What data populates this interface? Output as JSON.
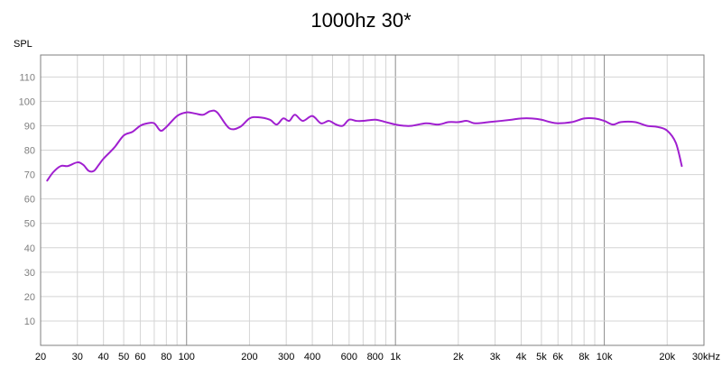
{
  "chart_data": {
    "type": "line",
    "title": "1000hz 30*",
    "ylabel": "SPL",
    "xlabel": "",
    "xscale": "log",
    "xlim": [
      20,
      30000
    ],
    "ylim": [
      0,
      119
    ],
    "yticks": [
      10,
      20,
      30,
      40,
      50,
      60,
      70,
      80,
      90,
      100,
      110
    ],
    "xticks": [
      {
        "value": 20,
        "label": "20"
      },
      {
        "value": 30,
        "label": "30"
      },
      {
        "value": 40,
        "label": "40"
      },
      {
        "value": 50,
        "label": "50"
      },
      {
        "value": 60,
        "label": "60"
      },
      {
        "value": 80,
        "label": "80"
      },
      {
        "value": 100,
        "label": "100"
      },
      {
        "value": 200,
        "label": "200"
      },
      {
        "value": 300,
        "label": "300"
      },
      {
        "value": 400,
        "label": "400"
      },
      {
        "value": 600,
        "label": "600"
      },
      {
        "value": 800,
        "label": "800"
      },
      {
        "value": 1000,
        "label": "1k"
      },
      {
        "value": 2000,
        "label": "2k"
      },
      {
        "value": 3000,
        "label": "3k"
      },
      {
        "value": 4000,
        "label": "4k"
      },
      {
        "value": 5000,
        "label": "5k"
      },
      {
        "value": 6000,
        "label": "6k"
      },
      {
        "value": 8000,
        "label": "8k"
      },
      {
        "value": 10000,
        "label": "10k"
      },
      {
        "value": 20000,
        "label": "20k"
      },
      {
        "value": 30000,
        "label": "30kHz"
      }
    ],
    "grid": true,
    "series_color": "#a01fd0",
    "series": [
      {
        "x": [
          21.5,
          23,
          25,
          27,
          30,
          32,
          34,
          36,
          38,
          40,
          45,
          50,
          55,
          60,
          65,
          70,
          75,
          80,
          90,
          100,
          110,
          120,
          130,
          140,
          160,
          180,
          200,
          220,
          250,
          270,
          290,
          310,
          330,
          360,
          400,
          440,
          480,
          520,
          560,
          600,
          650,
          700,
          800,
          900,
          1000,
          1100,
          1200,
          1400,
          1600,
          1800,
          2000,
          2200,
          2400,
          2800,
          3200,
          3600,
          4000,
          4500,
          5000,
          5500,
          6000,
          7000,
          8000,
          9000,
          10000,
          11000,
          12000,
          14000,
          16000,
          18000,
          20000,
          22000,
          23500
        ],
        "y": [
          67.5,
          71,
          73.5,
          73.5,
          75,
          74,
          71.5,
          71.5,
          74,
          76.5,
          81,
          86,
          87.5,
          90,
          91,
          91,
          88,
          89.5,
          94,
          95.5,
          95,
          94.5,
          96,
          95.5,
          89,
          89.5,
          93,
          93.5,
          92.5,
          90.5,
          93,
          92,
          94.5,
          92,
          94,
          91,
          92,
          90.5,
          90,
          92.5,
          92,
          92,
          92.5,
          91.5,
          90.5,
          90,
          90,
          91,
          90.5,
          91.5,
          91.5,
          92,
          91,
          91.5,
          92,
          92.5,
          93,
          93,
          92.5,
          91.5,
          91,
          91.5,
          93,
          93,
          92,
          90.5,
          91.5,
          91.5,
          90,
          89.5,
          88,
          83,
          73.5
        ]
      }
    ]
  }
}
